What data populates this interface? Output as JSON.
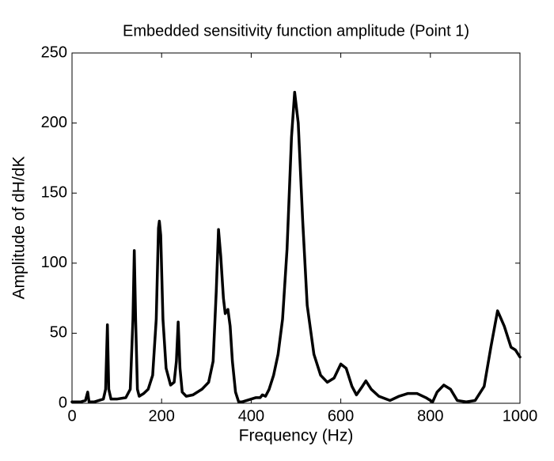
{
  "chart_data": {
    "type": "line",
    "title": "Embedded sensitivity function amplitude (Point 1)",
    "x_label": "Frequency (Hz)",
    "y_label": "Amplitude of dH/dK",
    "color": "#000000",
    "xlim": [
      0,
      1000
    ],
    "xticks": [
      0,
      200,
      400,
      600,
      800,
      1000
    ],
    "ylim": [
      0,
      250
    ],
    "yticks": [
      0,
      50,
      100,
      150,
      200,
      250
    ],
    "grid": false,
    "x": [
      0,
      20,
      30,
      35,
      38,
      50,
      60,
      70,
      75,
      79,
      82,
      87,
      100,
      120,
      130,
      136,
      139,
      142,
      146,
      150,
      160,
      170,
      180,
      188,
      193,
      195,
      198,
      203,
      210,
      220,
      228,
      233,
      237,
      241,
      246,
      255,
      270,
      290,
      305,
      315,
      322,
      327,
      332,
      338,
      342,
      348,
      353,
      358,
      365,
      372,
      380,
      400,
      410,
      420,
      425,
      432,
      440,
      450,
      460,
      470,
      480,
      490,
      497,
      505,
      515,
      525,
      540,
      555,
      570,
      585,
      600,
      612,
      625,
      635,
      648,
      656,
      668,
      685,
      710,
      730,
      750,
      770,
      790,
      805,
      815,
      830,
      845,
      860,
      880,
      900,
      920,
      935,
      950,
      965,
      980,
      990,
      1000
    ],
    "values": [
      1,
      1,
      2,
      8,
      1,
      1,
      2,
      3,
      10,
      56,
      10,
      3,
      3,
      4,
      10,
      60,
      109,
      60,
      10,
      5,
      7,
      10,
      20,
      60,
      125,
      130,
      120,
      60,
      25,
      13,
      15,
      30,
      58,
      25,
      8,
      5,
      6,
      10,
      15,
      30,
      80,
      124,
      105,
      75,
      64,
      67,
      55,
      30,
      8,
      1,
      1,
      3,
      4,
      4,
      6,
      5,
      10,
      20,
      35,
      60,
      110,
      190,
      222,
      200,
      130,
      70,
      35,
      20,
      15,
      18,
      28,
      25,
      12,
      6,
      12,
      16,
      10,
      5,
      2,
      5,
      7,
      7,
      4,
      1,
      8,
      13,
      10,
      2,
      1,
      2,
      12,
      40,
      66,
      55,
      40,
      38,
      33
    ]
  }
}
